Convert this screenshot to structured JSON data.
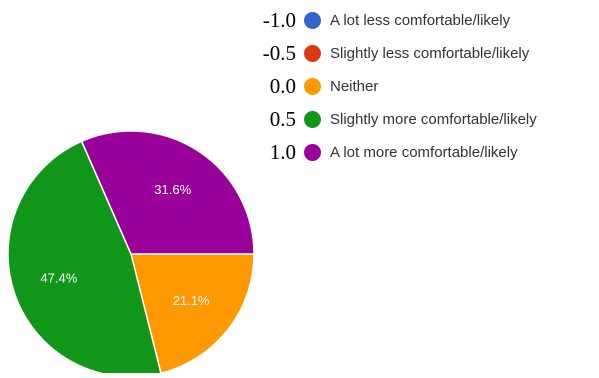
{
  "chart_data": {
    "type": "pie",
    "legend_position": "top-right",
    "slices": [
      {
        "label": "A lot less comfortable/likely",
        "scale_value": "-1.0",
        "percent": 0,
        "percent_label": "",
        "color": "#3366cc"
      },
      {
        "label": "Slightly less comfortable/likely",
        "scale_value": "-0.5",
        "percent": 0,
        "percent_label": "",
        "color": "#dc3912"
      },
      {
        "label": "Neither",
        "scale_value": "0.0",
        "percent": 21.1,
        "percent_label": "21.1%",
        "color": "#ff9900"
      },
      {
        "label": "Slightly more comfortable/likely",
        "scale_value": "0.5",
        "percent": 47.4,
        "percent_label": "47.4%",
        "color": "#109618"
      },
      {
        "label": "A lot more comfortable/likely",
        "scale_value": "1.0",
        "percent": 31.6,
        "percent_label": "31.6%",
        "color": "#990099"
      }
    ]
  }
}
